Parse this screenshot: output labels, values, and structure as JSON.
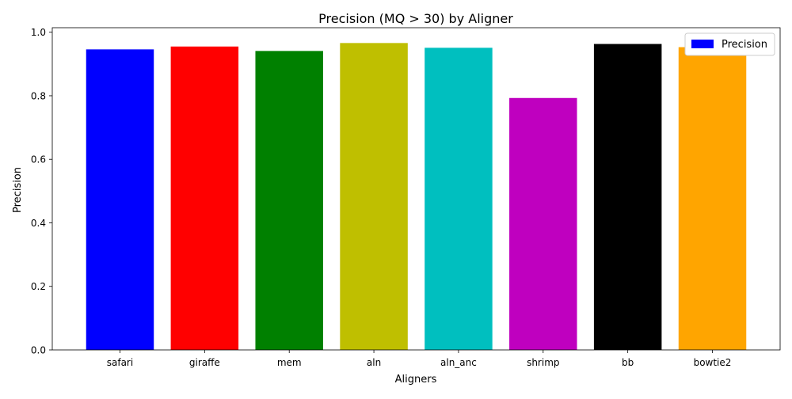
{
  "chart_data": {
    "type": "bar",
    "title": "Precision (MQ > 30) by Aligner",
    "xlabel": "Aligners",
    "ylabel": "Precision",
    "categories": [
      "safari",
      "giraffe",
      "mem",
      "aln",
      "aln_anc",
      "shrimp",
      "bb",
      "bowtie2"
    ],
    "series": [
      {
        "name": "Precision",
        "values": [
          0.946,
          0.955,
          0.941,
          0.966,
          0.951,
          0.793,
          0.963,
          0.953
        ],
        "colors": [
          "#0000ff",
          "#ff0000",
          "#008000",
          "#bfbf00",
          "#00bfbf",
          "#bf00bf",
          "#000000",
          "#ffa500"
        ]
      }
    ],
    "ylim": [
      0,
      1.0
    ],
    "yticks": [
      0.0,
      0.2,
      0.4,
      0.6,
      0.8,
      1.0
    ],
    "ytick_labels": [
      "0.0",
      "0.2",
      "0.4",
      "0.6",
      "0.8",
      "1.0"
    ],
    "grid": false,
    "legend": {
      "position": "top-right",
      "entries": [
        {
          "label": "Precision",
          "color": "#0000ff"
        }
      ]
    }
  }
}
